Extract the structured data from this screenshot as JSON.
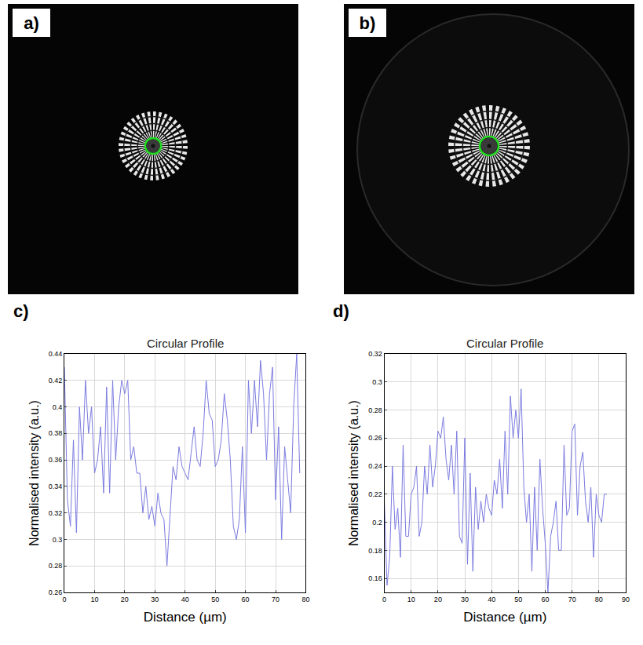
{
  "images": [
    {
      "panel": "a)"
    },
    {
      "panel": "b)"
    }
  ],
  "chart_data": [
    {
      "type": "line",
      "panel": "c)",
      "title": "Circular Profile",
      "x_label": "Distance (µm)",
      "y_label": "Normalised intensity (a.u.)",
      "x": [
        0,
        1,
        2,
        3,
        4,
        5,
        6,
        7,
        8,
        9,
        10,
        11,
        12,
        13,
        14,
        15,
        16,
        17,
        18,
        19,
        20,
        21,
        22,
        23,
        24,
        25,
        26,
        27,
        28,
        29,
        30,
        31,
        32,
        33,
        34,
        35,
        36,
        37,
        38,
        39,
        40,
        41,
        42,
        43,
        44,
        45,
        46,
        47,
        48,
        49,
        50,
        51,
        52,
        53,
        54,
        55,
        56,
        57,
        58,
        59,
        60,
        61,
        62,
        63,
        64,
        65,
        66,
        67,
        68,
        69,
        70,
        71,
        72,
        73,
        74,
        75,
        76,
        77,
        78
      ],
      "values": [
        0.43,
        0.33,
        0.31,
        0.375,
        0.305,
        0.4,
        0.36,
        0.42,
        0.38,
        0.4,
        0.35,
        0.36,
        0.385,
        0.335,
        0.415,
        0.335,
        0.42,
        0.36,
        0.4,
        0.42,
        0.41,
        0.42,
        0.36,
        0.37,
        0.35,
        0.35,
        0.32,
        0.34,
        0.315,
        0.325,
        0.31,
        0.335,
        0.32,
        0.315,
        0.28,
        0.32,
        0.355,
        0.345,
        0.37,
        0.355,
        0.35,
        0.345,
        0.365,
        0.385,
        0.36,
        0.355,
        0.38,
        0.42,
        0.395,
        0.39,
        0.355,
        0.36,
        0.375,
        0.41,
        0.39,
        0.36,
        0.31,
        0.3,
        0.315,
        0.37,
        0.305,
        0.42,
        0.38,
        0.42,
        0.385,
        0.435,
        0.41,
        0.36,
        0.41,
        0.43,
        0.33,
        0.385,
        0.3,
        0.37,
        0.345,
        0.32,
        0.4,
        0.44,
        0.35
      ],
      "color": "#7b7be0",
      "xlim": [
        0,
        80
      ],
      "xticks": [
        0,
        10,
        20,
        30,
        40,
        50,
        60,
        70,
        80
      ],
      "ylim": [
        0.26,
        0.44
      ],
      "yticks": [
        0.26,
        0.28,
        0.3,
        0.32,
        0.34,
        0.36,
        0.38,
        0.4,
        0.42,
        0.44
      ],
      "grid": true
    },
    {
      "type": "line",
      "panel": "d)",
      "title": "Circular Profile",
      "x_label": "Distance (µm)",
      "y_label": "Normalised intensity (a.u.)",
      "x": [
        0,
        1,
        2,
        3,
        4,
        5,
        6,
        7,
        8,
        9,
        10,
        11,
        12,
        13,
        14,
        15,
        16,
        17,
        18,
        19,
        20,
        21,
        22,
        23,
        24,
        25,
        26,
        27,
        28,
        29,
        30,
        31,
        32,
        33,
        34,
        35,
        36,
        37,
        38,
        39,
        40,
        41,
        42,
        43,
        44,
        45,
        46,
        47,
        48,
        49,
        50,
        51,
        52,
        53,
        54,
        55,
        56,
        57,
        58,
        59,
        60,
        61,
        62,
        63,
        64,
        65,
        66,
        67,
        68,
        69,
        70,
        71,
        72,
        73,
        74,
        75,
        76,
        77,
        78,
        79,
        80,
        81,
        82,
        83
      ],
      "values": [
        0.215,
        0.155,
        0.175,
        0.24,
        0.195,
        0.21,
        0.175,
        0.255,
        0.19,
        0.19,
        0.22,
        0.225,
        0.24,
        0.19,
        0.2,
        0.24,
        0.22,
        0.255,
        0.225,
        0.24,
        0.265,
        0.26,
        0.275,
        0.245,
        0.23,
        0.255,
        0.22,
        0.265,
        0.19,
        0.185,
        0.26,
        0.17,
        0.235,
        0.165,
        0.225,
        0.195,
        0.215,
        0.2,
        0.22,
        0.21,
        0.205,
        0.23,
        0.22,
        0.245,
        0.21,
        0.265,
        0.22,
        0.29,
        0.26,
        0.28,
        0.26,
        0.295,
        0.225,
        0.2,
        0.22,
        0.165,
        0.225,
        0.18,
        0.245,
        0.21,
        0.185,
        0.15,
        0.19,
        0.2,
        0.215,
        0.18,
        0.18,
        0.255,
        0.205,
        0.21,
        0.265,
        0.27,
        0.205,
        0.24,
        0.25,
        0.215,
        0.2,
        0.225,
        0.175,
        0.22,
        0.205,
        0.2,
        0.22,
        0.22
      ],
      "color": "#7b7be0",
      "xlim": [
        0,
        90
      ],
      "xticks": [
        0,
        10,
        20,
        30,
        40,
        50,
        60,
        70,
        80,
        90
      ],
      "ylim": [
        0.15,
        0.32
      ],
      "yticks": [
        0.16,
        0.18,
        0.2,
        0.22,
        0.24,
        0.26,
        0.28,
        0.3,
        0.32
      ],
      "grid": true
    }
  ]
}
